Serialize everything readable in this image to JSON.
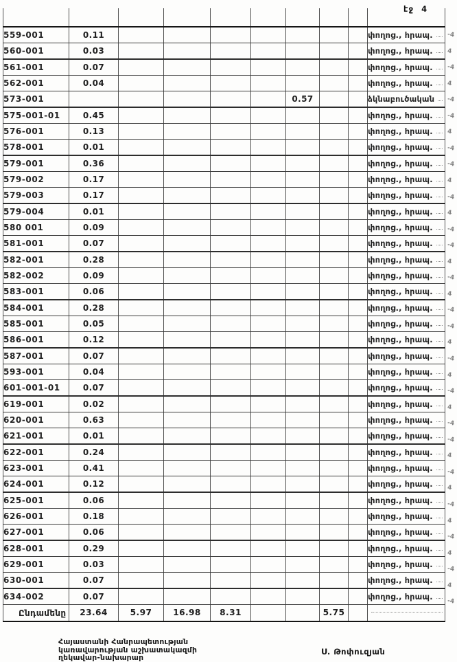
{
  "page_label": "էջ 4",
  "table": {
    "rows": [
      {
        "code": "559-001",
        "values": [
          "0.11",
          "",
          "",
          "",
          "",
          "",
          "",
          ""
        ],
        "note": "փողոց., հրապ."
      },
      {
        "code": "560-001",
        "values": [
          "0.03",
          "",
          "",
          "",
          "",
          "",
          "",
          ""
        ],
        "note": "փողոց., հրապ."
      },
      {
        "code": "561-001",
        "values": [
          "0.07",
          "",
          "",
          "",
          "",
          "",
          "",
          ""
        ],
        "note": "փողոց., հրապ."
      },
      {
        "code": "562-001",
        "values": [
          "0.04",
          "",
          "",
          "",
          "",
          "",
          "",
          ""
        ],
        "note": "փողոց., հրապ."
      },
      {
        "code": "573-001",
        "values": [
          "",
          "",
          "",
          "",
          "",
          "0.57",
          "",
          ""
        ],
        "note": "ձկնաբուծական"
      },
      {
        "code": "575-001-01",
        "values": [
          "0.45",
          "",
          "",
          "",
          "",
          "",
          "",
          ""
        ],
        "note": "փողոց., հրապ."
      },
      {
        "code": "576-001",
        "values": [
          "0.13",
          "",
          "",
          "",
          "",
          "",
          "",
          ""
        ],
        "note": "փողոց., հրապ."
      },
      {
        "code": "578-001",
        "values": [
          "0.01",
          "",
          "",
          "",
          "",
          "",
          "",
          ""
        ],
        "note": "փողոց., հրապ."
      },
      {
        "code": "579-001",
        "values": [
          "0.36",
          "",
          "",
          "",
          "",
          "",
          "",
          ""
        ],
        "note": "փողոց., հրապ."
      },
      {
        "code": "579-002",
        "values": [
          "0.17",
          "",
          "",
          "",
          "",
          "",
          "",
          ""
        ],
        "note": "փողոց., հրապ."
      },
      {
        "code": "579-003",
        "values": [
          "0.17",
          "",
          "",
          "",
          "",
          "",
          "",
          ""
        ],
        "note": "փողոց., հրապ."
      },
      {
        "code": "579-004",
        "values": [
          "0.01",
          "",
          "",
          "",
          "",
          "",
          "",
          ""
        ],
        "note": "փողոց., հրապ."
      },
      {
        "code": "580 001",
        "values": [
          "0.09",
          "",
          "",
          "",
          "",
          "",
          "",
          ""
        ],
        "note": "փողոց., հրապ."
      },
      {
        "code": "581-001",
        "values": [
          "0.07",
          "",
          "",
          "",
          "",
          "",
          "",
          ""
        ],
        "note": "փողոց., հրապ."
      },
      {
        "code": "582-001",
        "values": [
          "0.28",
          "",
          "",
          "",
          "",
          "",
          "",
          ""
        ],
        "note": "փողոց., հրապ."
      },
      {
        "code": "582-002",
        "values": [
          "0.09",
          "",
          "",
          "",
          "",
          "",
          "",
          ""
        ],
        "note": "փողոց., հրապ."
      },
      {
        "code": "583-001",
        "values": [
          "0.06",
          "",
          "",
          "",
          "",
          "",
          "",
          ""
        ],
        "note": "փողոց., հրապ."
      },
      {
        "code": "584-001",
        "values": [
          "0.28",
          "",
          "",
          "",
          "",
          "",
          "",
          ""
        ],
        "note": "փողոց., հրապ."
      },
      {
        "code": "585-001",
        "values": [
          "0.05",
          "",
          "",
          "",
          "",
          "",
          "",
          ""
        ],
        "note": "փողոց., հրապ."
      },
      {
        "code": "586-001",
        "values": [
          "0.12",
          "",
          "",
          "",
          "",
          "",
          "",
          ""
        ],
        "note": "փողոց., հրապ."
      },
      {
        "code": "587-001",
        "values": [
          "0.07",
          "",
          "",
          "",
          "",
          "",
          "",
          ""
        ],
        "note": "փողոց., հրապ."
      },
      {
        "code": "593-001",
        "values": [
          "0.04",
          "",
          "",
          "",
          "",
          "",
          "",
          ""
        ],
        "note": "փողոց., հրապ."
      },
      {
        "code": "601-001-01",
        "values": [
          "0.07",
          "",
          "",
          "",
          "",
          "",
          "",
          ""
        ],
        "note": "փողոց., հրապ."
      },
      {
        "code": "619-001",
        "values": [
          "0.02",
          "",
          "",
          "",
          "",
          "",
          "",
          ""
        ],
        "note": "փողոց., հրապ."
      },
      {
        "code": "620-001",
        "values": [
          "0.63",
          "",
          "",
          "",
          "",
          "",
          "",
          ""
        ],
        "note": "փողոց., հրապ."
      },
      {
        "code": "621-001",
        "values": [
          "0.01",
          "",
          "",
          "",
          "",
          "",
          "",
          ""
        ],
        "note": "փողոց., հրապ."
      },
      {
        "code": "622-001",
        "values": [
          "0.24",
          "",
          "",
          "",
          "",
          "",
          "",
          ""
        ],
        "note": "փողոց., հրապ."
      },
      {
        "code": "623-001",
        "values": [
          "0.41",
          "",
          "",
          "",
          "",
          "",
          "",
          ""
        ],
        "note": "փողոց., հրապ."
      },
      {
        "code": "624-001",
        "values": [
          "0.12",
          "",
          "",
          "",
          "",
          "",
          "",
          ""
        ],
        "note": "փողոց., հրապ."
      },
      {
        "code": "625-001",
        "values": [
          "0.06",
          "",
          "",
          "",
          "",
          "",
          "",
          ""
        ],
        "note": "փողոց., հրապ."
      },
      {
        "code": "626-001",
        "values": [
          "0.18",
          "",
          "",
          "",
          "",
          "",
          "",
          ""
        ],
        "note": "փողոց., հրապ."
      },
      {
        "code": "627-001",
        "values": [
          "0.06",
          "",
          "",
          "",
          "",
          "",
          "",
          ""
        ],
        "note": "փողոց., հրապ."
      },
      {
        "code": "628-001",
        "values": [
          "0.29",
          "",
          "",
          "",
          "",
          "",
          "",
          ""
        ],
        "note": "փողոց., հրապ."
      },
      {
        "code": "629-001",
        "values": [
          "0.03",
          "",
          "",
          "",
          "",
          "",
          "",
          ""
        ],
        "note": "փողոց., հրապ."
      },
      {
        "code": "630-001",
        "values": [
          "0.07",
          "",
          "",
          "",
          "",
          "",
          "",
          ""
        ],
        "note": "փողոց., հրապ."
      },
      {
        "code": "634-002",
        "values": [
          "0.07",
          "",
          "",
          "",
          "",
          "",
          "",
          ""
        ],
        "note": "փողոց., հրապ."
      }
    ],
    "total": {
      "label": "Ընդամենը",
      "values": [
        "23.64",
        "5.97",
        "16.98",
        "8.31",
        "",
        "",
        "5.75",
        ""
      ],
      "note": ""
    }
  },
  "footer": {
    "office_lines": [
      "Հայաստանի Հանրապետության",
      "կառավարության աշխատակազմի",
      "ղեկավար-նախարար"
    ],
    "signature": "Ս. Թոփուզյան"
  },
  "margin_marks": [
    "-4",
    "4",
    "-4",
    "4",
    "-4",
    "-4",
    "4",
    "-4",
    "-4",
    "4",
    "-4",
    "4",
    "-4",
    "-4",
    "4",
    "-4",
    "4",
    "-4",
    "-4",
    "4",
    "-4",
    "4",
    "-4",
    "4",
    "-4",
    "-4",
    "4",
    "-4",
    "4",
    "-4",
    "4",
    "-4",
    "4",
    "-4",
    "4",
    "-4"
  ]
}
